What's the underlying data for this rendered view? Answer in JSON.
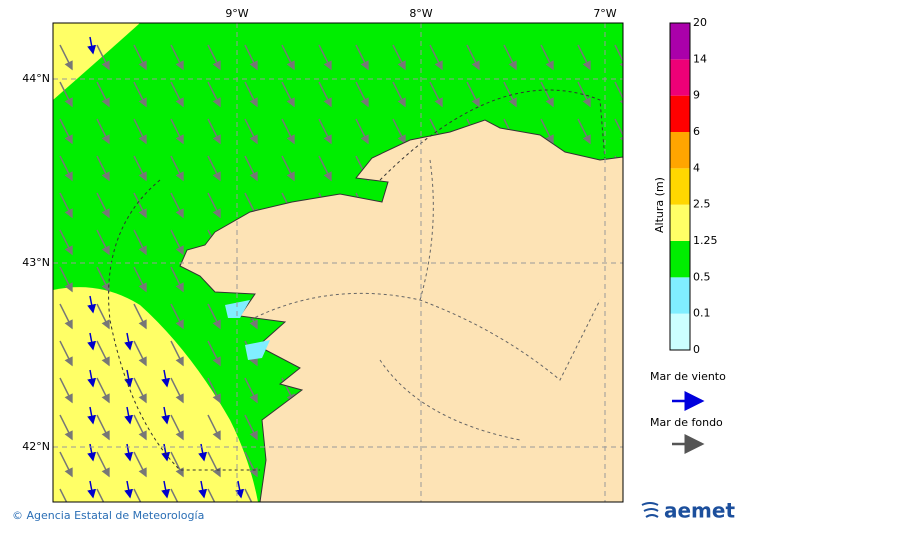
{
  "map": {
    "lon_labels": [
      "9°W",
      "8°W",
      "7°W"
    ],
    "lat_labels": [
      "44°N",
      "43°N",
      "42°N"
    ],
    "colorbar": {
      "title": "Altura (m)",
      "levels": [
        {
          "label": "0",
          "color": "#ccffff"
        },
        {
          "label": "0.1",
          "color": "#80eeff"
        },
        {
          "label": "0.5",
          "color": "#00ee00"
        },
        {
          "label": "1.25",
          "color": "#ffff66"
        },
        {
          "label": "2.5",
          "color": "#ffd700"
        },
        {
          "label": "4",
          "color": "#ffa500"
        },
        {
          "label": "6",
          "color": "#ff0000"
        },
        {
          "label": "9",
          "color": "#ee0077"
        },
        {
          "label": "14",
          "color": "#aa00aa"
        },
        {
          "label": "20",
          "color": null
        }
      ]
    },
    "legend": [
      {
        "label": "Mar de viento",
        "color": "#0000dd"
      },
      {
        "label": "Mar de fondo",
        "color": "#555555"
      }
    ],
    "footer": {
      "copyright": "© Agencia Estatal de Meteorología",
      "logo": "aemet"
    }
  }
}
